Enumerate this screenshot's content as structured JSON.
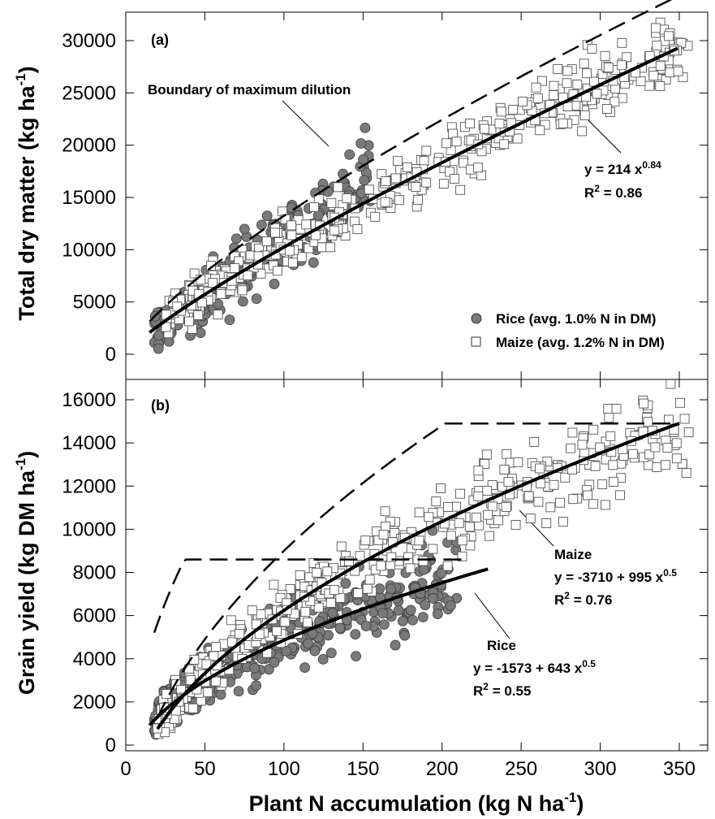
{
  "chart_data": [
    {
      "type": "scatter",
      "panel_label": "(a)",
      "ylabel": "Total dry matter (kg ha",
      "ylabel_sup": "-1",
      "ylabel_end": ")",
      "xlim": [
        0,
        365
      ],
      "ylim": [
        -2000,
        32000
      ],
      "yticks": [
        0,
        5000,
        10000,
        15000,
        20000,
        25000,
        30000
      ],
      "xticks": [
        0,
        50,
        100,
        150,
        200,
        250,
        300,
        350
      ],
      "legend": {
        "placement": "bottom-right",
        "entries": [
          {
            "label": "Rice (avg. 1.0% N in DM)",
            "marker": "filled-circle"
          },
          {
            "label": "Maize (avg. 1.2% N in DM)",
            "marker": "open-square"
          }
        ]
      },
      "series": [
        {
          "name": "Rice (avg. 1.0% N in DM)",
          "marker": "filled-circle",
          "color": "#7a7a7a",
          "x_range": [
            18,
            155
          ],
          "model": {
            "a": 0,
            "b": 110,
            "p": 1,
            "noise": 2200
          },
          "n": 230
        },
        {
          "name": "Maize (avg. 1.2% N in DM)",
          "marker": "open-square",
          "color": "#ffffff",
          "x_range": [
            25,
            357
          ],
          "model": {
            "a": 0,
            "b": 214,
            "p": 0.84,
            "noise": 2000
          },
          "n": 420
        }
      ],
      "curves": [
        {
          "kind": "fit",
          "style": "solid",
          "equation": "y = 214 x^0.84",
          "model": {
            "a": 0,
            "b": 214,
            "p": 0.84
          },
          "x_range": [
            15,
            350
          ]
        },
        {
          "kind": "boundary",
          "style": "dashed",
          "model": {
            "a": 0,
            "b": 400,
            "p": 0.76
          },
          "x_range": [
            15,
            350
          ]
        }
      ],
      "annotations": [
        {
          "text": "Boundary of maximum dilution",
          "kind": "label",
          "points_to_x": 145
        },
        {
          "kind": "equation",
          "line1": "y = 214 x",
          "line1_sup": "0.84",
          "r2_sup": "2",
          "r2_value": " = 0.86",
          "points_to_x": 265
        }
      ]
    },
    {
      "type": "scatter",
      "panel_label": "(b)",
      "xlabel": "Plant N accumulation (kg N ha",
      "xlabel_sup": "-1",
      "xlabel_end": ")",
      "ylabel": "Grain yield (kg DM ha",
      "ylabel_sup": "-1",
      "ylabel_end": ")",
      "xlim": [
        0,
        365
      ],
      "ylim": [
        0,
        17000
      ],
      "yticks": [
        0,
        2000,
        4000,
        6000,
        8000,
        10000,
        12000,
        14000,
        16000
      ],
      "xticks": [
        0,
        50,
        100,
        150,
        200,
        250,
        300,
        350
      ],
      "x_tick_labels": [
        "0",
        "50",
        "100",
        "150",
        "200",
        "250",
        "300",
        "350"
      ],
      "series": [
        {
          "name": "Rice",
          "marker": "filled-circle",
          "color": "#7a7a7a",
          "x_range": [
            18,
            210
          ],
          "model": {
            "a": -1573,
            "b": 643,
            "p": 0.5,
            "noise": 1100
          },
          "n": 330
        },
        {
          "name": "Maize",
          "marker": "open-square",
          "color": "#ffffff",
          "x_range": [
            20,
            357
          ],
          "model": {
            "a": -3710,
            "b": 995,
            "p": 0.5,
            "noise": 1100
          },
          "n": 400
        }
      ],
      "curves": [
        {
          "kind": "fit",
          "style": "solid",
          "equation": "y = -3710 + 995 x^0.5",
          "model": {
            "a": -3710,
            "b": 995,
            "p": 0.5
          },
          "x_range": [
            20,
            350
          ]
        },
        {
          "kind": "fit",
          "style": "solid",
          "equation": "y = -1573 + 643 x^0.5",
          "model": {
            "a": -1573,
            "b": 643,
            "p": 0.5
          },
          "x_range": [
            15,
            230
          ]
        },
        {
          "kind": "boundary",
          "style": "dashed",
          "model": {
            "a": -2600,
            "b": 1840,
            "p": 0.5
          },
          "x_range": [
            18,
            215
          ],
          "cap": 8600
        },
        {
          "kind": "boundary",
          "style": "dashed",
          "model": {
            "a": -5000,
            "b": 1400,
            "p": 0.5
          },
          "x_range": [
            20,
            350
          ],
          "cap": 14900
        }
      ],
      "annotations": [
        {
          "kind": "equation",
          "title": "Maize",
          "line1": "y = -3710 + 995 x",
          "line1_sup": "0.5",
          "r2_sup": "2",
          "r2_value": " = 0.76",
          "points_to_x": 245
        },
        {
          "kind": "equation",
          "title": "Rice",
          "line1": "y = -1573 + 643 x",
          "line1_sup": "0.5",
          "r2_sup": "2",
          "r2_value": " = 0.55",
          "points_to_x": 195
        }
      ]
    }
  ]
}
